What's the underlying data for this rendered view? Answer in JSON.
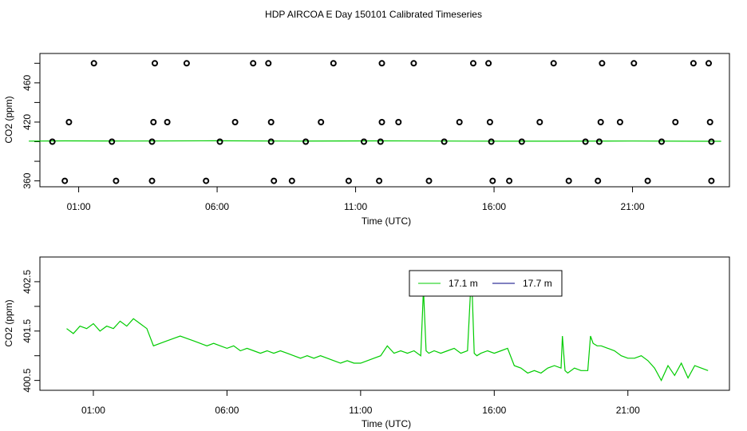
{
  "title": "HDP AIRCOA E  Day 150101  Calibrated Timeseries",
  "colors": {
    "series_a": "#00cc00",
    "series_b": "#000080",
    "markers": "#000000",
    "axes": "#000000"
  },
  "chart_data": [
    {
      "type": "scatter",
      "xlabel": "Time (UTC)",
      "ylabel": "CO2 (ppm)",
      "x_ticks": [
        "01:00",
        "06:00",
        "11:00",
        "16:00",
        "21:00"
      ],
      "x_tick_values": [
        1,
        6,
        11,
        16,
        21
      ],
      "y_ticks": [
        360,
        420,
        460
      ],
      "y_labeled_ticks": [
        360,
        420,
        460
      ],
      "y_all_ticks": [
        360,
        380,
        400,
        420,
        440,
        460,
        480
      ],
      "xlim": [
        -0.4,
        24.5
      ],
      "ylim": [
        354,
        490
      ],
      "grid": false,
      "marker_series": {
        "name": "",
        "levels": [
          360,
          380,
          400,
          420,
          480
        ],
        "points": [
          {
            "x": 0.5,
            "y": 360
          },
          {
            "x": 2.35,
            "y": 360
          },
          {
            "x": 3.65,
            "y": 360
          },
          {
            "x": 5.6,
            "y": 360
          },
          {
            "x": 8.05,
            "y": 360
          },
          {
            "x": 8.7,
            "y": 360
          },
          {
            "x": 10.75,
            "y": 360
          },
          {
            "x": 11.85,
            "y": 360
          },
          {
            "x": 13.65,
            "y": 360
          },
          {
            "x": 15.95,
            "y": 360
          },
          {
            "x": 16.55,
            "y": 360
          },
          {
            "x": 18.7,
            "y": 360
          },
          {
            "x": 19.75,
            "y": 360
          },
          {
            "x": 21.55,
            "y": 360
          },
          {
            "x": 23.85,
            "y": 360
          },
          {
            "x": 0.05,
            "y": 400
          },
          {
            "x": 2.2,
            "y": 400
          },
          {
            "x": 3.65,
            "y": 400
          },
          {
            "x": 6.1,
            "y": 400
          },
          {
            "x": 7.95,
            "y": 400
          },
          {
            "x": 9.2,
            "y": 400
          },
          {
            "x": 11.3,
            "y": 400
          },
          {
            "x": 11.9,
            "y": 400
          },
          {
            "x": 14.2,
            "y": 400
          },
          {
            "x": 15.9,
            "y": 400
          },
          {
            "x": 17.0,
            "y": 400
          },
          {
            "x": 19.3,
            "y": 400
          },
          {
            "x": 19.8,
            "y": 400
          },
          {
            "x": 22.05,
            "y": 400
          },
          {
            "x": 23.85,
            "y": 400
          },
          {
            "x": 0.65,
            "y": 420
          },
          {
            "x": 3.7,
            "y": 420
          },
          {
            "x": 4.2,
            "y": 420
          },
          {
            "x": 6.65,
            "y": 420
          },
          {
            "x": 7.95,
            "y": 420
          },
          {
            "x": 9.75,
            "y": 420
          },
          {
            "x": 11.95,
            "y": 420
          },
          {
            "x": 12.55,
            "y": 420
          },
          {
            "x": 14.75,
            "y": 420
          },
          {
            "x": 15.85,
            "y": 420
          },
          {
            "x": 17.65,
            "y": 420
          },
          {
            "x": 19.85,
            "y": 420
          },
          {
            "x": 20.55,
            "y": 420
          },
          {
            "x": 22.55,
            "y": 420
          },
          {
            "x": 23.8,
            "y": 420
          },
          {
            "x": 1.55,
            "y": 480
          },
          {
            "x": 3.75,
            "y": 480
          },
          {
            "x": 4.9,
            "y": 480
          },
          {
            "x": 7.3,
            "y": 480
          },
          {
            "x": 7.85,
            "y": 480
          },
          {
            "x": 10.2,
            "y": 480
          },
          {
            "x": 11.95,
            "y": 480
          },
          {
            "x": 13.1,
            "y": 480
          },
          {
            "x": 15.25,
            "y": 480
          },
          {
            "x": 15.8,
            "y": 480
          },
          {
            "x": 18.15,
            "y": 480
          },
          {
            "x": 19.9,
            "y": 480
          },
          {
            "x": 21.05,
            "y": 480
          },
          {
            "x": 23.2,
            "y": 480
          },
          {
            "x": 23.75,
            "y": 480
          }
        ]
      },
      "line_series": {
        "name": "17.1 m",
        "x": [
          -1.0,
          24.8
        ],
        "y": [
          401,
          401
        ]
      }
    },
    {
      "type": "line",
      "xlabel": "Time (UTC)",
      "ylabel": "CO2 (ppm)",
      "x_ticks": [
        "01:00",
        "06:00",
        "11:00",
        "16:00",
        "21:00"
      ],
      "x_tick_values": [
        1,
        6,
        11,
        16,
        21
      ],
      "y_ticks": [
        "400.5",
        "401.5",
        "402.5"
      ],
      "y_labeled_ticks": [
        400.5,
        401.5,
        402.5
      ],
      "y_all_ticks": [
        400.5,
        401.0,
        401.5,
        402.0,
        402.5
      ],
      "xlim": [
        -1.0,
        24.8
      ],
      "ylim": [
        400.3,
        403.0
      ],
      "grid": false,
      "legend_position": "top-center",
      "series": [
        {
          "name": "17.1 m",
          "x": [
            0,
            0.25,
            0.5,
            0.75,
            1.0,
            1.25,
            1.5,
            1.75,
            2.0,
            2.25,
            2.5,
            2.75,
            3.0,
            3.25,
            3.5,
            3.75,
            4.0,
            4.25,
            4.5,
            4.75,
            5.0,
            5.25,
            5.5,
            5.75,
            6.0,
            6.25,
            6.5,
            6.75,
            7.0,
            7.25,
            7.5,
            7.75,
            8.0,
            8.25,
            8.5,
            8.75,
            9.0,
            9.25,
            9.5,
            9.75,
            10.0,
            10.25,
            10.5,
            10.75,
            11.0,
            11.25,
            11.5,
            11.75,
            12.0,
            12.25,
            12.5,
            12.75,
            13.0,
            13.25,
            13.35,
            13.45,
            13.55,
            13.75,
            14.0,
            14.25,
            14.5,
            14.75,
            15.0,
            15.15,
            15.25,
            15.35,
            15.5,
            15.75,
            16.0,
            16.25,
            16.5,
            16.75,
            17.0,
            17.25,
            17.5,
            17.75,
            18.0,
            18.25,
            18.5,
            18.55,
            18.65,
            18.75,
            19.0,
            19.25,
            19.5,
            19.6,
            19.7,
            19.85,
            20.0,
            20.25,
            20.5,
            20.75,
            21.0,
            21.25,
            21.5,
            21.75,
            22.0,
            22.25,
            22.5,
            22.75,
            23.0,
            23.25,
            23.5,
            23.75,
            24.0
          ],
          "y": [
            401.55,
            401.45,
            401.6,
            401.55,
            401.65,
            401.5,
            401.6,
            401.55,
            401.7,
            401.6,
            401.75,
            401.65,
            401.55,
            401.2,
            401.25,
            401.3,
            401.35,
            401.4,
            401.35,
            401.3,
            401.25,
            401.2,
            401.25,
            401.2,
            401.15,
            401.2,
            401.1,
            401.15,
            401.1,
            401.05,
            401.1,
            401.05,
            401.1,
            401.05,
            401.0,
            400.95,
            401.0,
            400.95,
            401.0,
            400.95,
            400.9,
            400.85,
            400.9,
            400.85,
            400.85,
            400.9,
            400.95,
            401.0,
            401.2,
            401.05,
            401.1,
            401.05,
            401.1,
            401.0,
            402.35,
            401.1,
            401.05,
            401.1,
            401.05,
            401.1,
            401.15,
            401.05,
            401.1,
            402.7,
            401.05,
            401.0,
            401.05,
            401.1,
            401.05,
            401.1,
            401.15,
            400.8,
            400.75,
            400.65,
            400.7,
            400.65,
            400.75,
            400.8,
            400.75,
            401.4,
            400.7,
            400.65,
            400.75,
            400.7,
            400.7,
            401.4,
            401.25,
            401.2,
            401.2,
            401.15,
            401.1,
            401.0,
            400.95,
            400.95,
            401.0,
            400.9,
            400.75,
            400.5,
            400.8,
            400.6,
            400.85,
            400.55,
            400.8,
            400.75,
            400.7
          ]
        },
        {
          "name": "17.7 m",
          "x": [],
          "y": []
        }
      ]
    }
  ]
}
